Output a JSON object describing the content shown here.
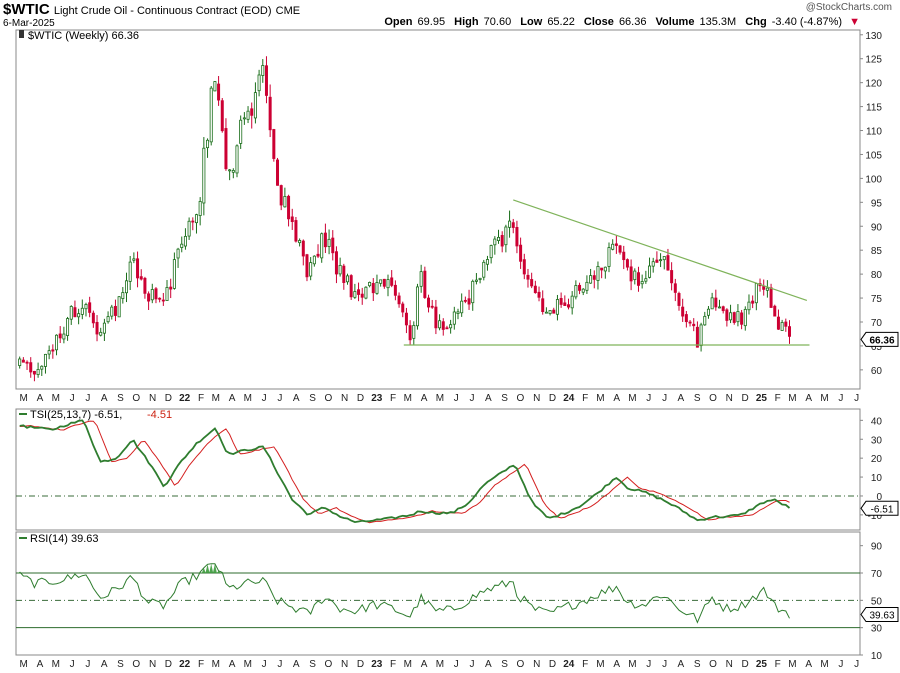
{
  "header": {
    "symbol": "$WTIC",
    "name": "Light Crude Oil - Continuous Contract (EOD)",
    "exchange": "CME",
    "date": "6-Mar-2025",
    "credit": "@StockCharts.com",
    "ohlc": {
      "open_label": "Open",
      "open": "69.95",
      "high_label": "High",
      "high": "70.60",
      "low_label": "Low",
      "low": "65.22",
      "close_label": "Close",
      "close": "66.36",
      "volume_label": "Volume",
      "volume": "135.3M",
      "chg_label": "Chg",
      "chg": "-3.40 (-4.87%)"
    }
  },
  "colors": {
    "up": "#1a6e1a",
    "down": "#cc0033",
    "tsi_line": "#2f7d2f",
    "tsi_signal": "#d42020",
    "rsi_line": "#2f7d2f",
    "rsi_fill": "#3c9a3c",
    "trend": "#7fb35a"
  },
  "chart_data": [
    {
      "type": "candlestick",
      "title": "$WTIC (Weekly) 66.36",
      "last_value": "66.36",
      "ylim": [
        56,
        131
      ],
      "y_ticks": [
        60,
        65,
        70,
        75,
        80,
        85,
        90,
        95,
        100,
        105,
        110,
        115,
        120,
        125,
        130
      ],
      "x_labels": [
        "M",
        "A",
        "M",
        "J",
        "J",
        "A",
        "S",
        "O",
        "N",
        "D",
        "22",
        "F",
        "M",
        "A",
        "M",
        "J",
        "J",
        "A",
        "S",
        "O",
        "N",
        "D",
        "23",
        "F",
        "M",
        "A",
        "M",
        "J",
        "J",
        "A",
        "S",
        "O",
        "N",
        "D",
        "24",
        "F",
        "M",
        "A",
        "M",
        "J",
        "J",
        "A",
        "S",
        "O",
        "N",
        "D",
        "25",
        "F",
        "M",
        "A",
        "M",
        "J",
        "J"
      ],
      "weekly_close_path": [
        [
          "2021-03-01",
          61
        ],
        [
          "2021-04-01",
          60
        ],
        [
          "2021-05-01",
          64
        ],
        [
          "2021-06-01",
          71
        ],
        [
          "2021-07-01",
          74
        ],
        [
          "2021-08-01",
          68
        ],
        [
          "2021-09-01",
          73
        ],
        [
          "2021-10-01",
          83
        ],
        [
          "2021-11-01",
          76
        ],
        [
          "2021-12-01",
          74
        ],
        [
          "2022-01-01",
          86
        ],
        [
          "2022-02-01",
          92
        ],
        [
          "2022-03-08",
          123.7
        ],
        [
          "2022-04-01",
          100
        ],
        [
          "2022-05-01",
          112
        ],
        [
          "2022-06-08",
          122
        ],
        [
          "2022-07-01",
          99
        ],
        [
          "2022-08-01",
          90
        ],
        [
          "2022-09-01",
          80
        ],
        [
          "2022-10-01",
          88
        ],
        [
          "2022-11-01",
          80
        ],
        [
          "2022-12-01",
          75
        ],
        [
          "2023-01-01",
          78
        ],
        [
          "2023-02-01",
          77
        ],
        [
          "2023-03-15",
          67
        ],
        [
          "2023-04-01",
          80
        ],
        [
          "2023-05-01",
          70
        ],
        [
          "2023-06-01",
          70
        ],
        [
          "2023-07-01",
          75
        ],
        [
          "2023-08-01",
          83
        ],
        [
          "2023-09-28",
          91
        ],
        [
          "2023-10-01",
          85
        ],
        [
          "2023-11-01",
          77
        ],
        [
          "2023-12-01",
          72
        ],
        [
          "2024-01-01",
          74
        ],
        [
          "2024-02-01",
          77
        ],
        [
          "2024-03-01",
          81
        ],
        [
          "2024-04-08",
          86
        ],
        [
          "2024-05-01",
          79
        ],
        [
          "2024-06-01",
          79
        ],
        [
          "2024-07-05",
          83
        ],
        [
          "2024-08-01",
          75
        ],
        [
          "2024-09-10",
          66
        ],
        [
          "2024-10-07",
          76
        ],
        [
          "2024-11-01",
          70
        ],
        [
          "2024-12-01",
          71
        ],
        [
          "2025-01-15",
          79
        ],
        [
          "2025-02-01",
          71
        ],
        [
          "2025-03-06",
          66.36
        ]
      ],
      "resistance_trendline": [
        [
          "2023-09-25",
          95.5
        ],
        [
          "2025-04-05",
          74.5
        ]
      ],
      "support_line": {
        "from": "2023-03-01",
        "to": "2025-04-10",
        "y": 65.2
      }
    },
    {
      "type": "line",
      "title": "TSI(25,13,7)",
      "series": [
        {
          "name": "TSI(25,13,7)",
          "value": "-6.51"
        },
        {
          "name": "signal",
          "value": "-4.51"
        }
      ],
      "ylim": [
        -18,
        46
      ],
      "y_ticks": [
        -10,
        0,
        10,
        20,
        30,
        40
      ],
      "reference_line": 0,
      "tsi_path": [
        [
          "2021-03-01",
          37
        ],
        [
          "2021-04-01",
          36
        ],
        [
          "2021-05-01",
          35
        ],
        [
          "2021-06-01",
          38
        ],
        [
          "2021-07-01",
          40
        ],
        [
          "2021-08-01",
          18
        ],
        [
          "2021-09-01",
          20
        ],
        [
          "2021-10-01",
          30
        ],
        [
          "2021-11-01",
          18
        ],
        [
          "2021-12-01",
          5
        ],
        [
          "2022-01-01",
          18
        ],
        [
          "2022-02-01",
          28
        ],
        [
          "2022-03-08",
          36
        ],
        [
          "2022-04-01",
          22
        ],
        [
          "2022-05-01",
          24
        ],
        [
          "2022-06-08",
          26
        ],
        [
          "2022-07-01",
          14
        ],
        [
          "2022-08-01",
          -2
        ],
        [
          "2022-09-01",
          -10
        ],
        [
          "2022-10-01",
          -6
        ],
        [
          "2022-11-01",
          -11
        ],
        [
          "2022-12-01",
          -14
        ],
        [
          "2023-01-01",
          -13
        ],
        [
          "2023-02-01",
          -12
        ],
        [
          "2023-03-15",
          -10
        ],
        [
          "2023-04-01",
          -8
        ],
        [
          "2023-05-01",
          -9
        ],
        [
          "2023-06-01",
          -9
        ],
        [
          "2023-07-01",
          -4
        ],
        [
          "2023-08-01",
          6
        ],
        [
          "2023-09-28",
          17
        ],
        [
          "2023-10-01",
          15
        ],
        [
          "2023-11-01",
          -4
        ],
        [
          "2023-12-01",
          -12
        ],
        [
          "2024-01-01",
          -9
        ],
        [
          "2024-02-01",
          -5
        ],
        [
          "2024-03-01",
          1
        ],
        [
          "2024-04-08",
          10
        ],
        [
          "2024-05-01",
          4
        ],
        [
          "2024-06-01",
          2
        ],
        [
          "2024-07-05",
          -2
        ],
        [
          "2024-08-01",
          -6
        ],
        [
          "2024-09-10",
          -13
        ],
        [
          "2024-10-07",
          -11
        ],
        [
          "2024-11-01",
          -11
        ],
        [
          "2024-12-01",
          -10
        ],
        [
          "2025-01-15",
          -3
        ],
        [
          "2025-02-01",
          -2
        ],
        [
          "2025-03-06",
          -6.51
        ]
      ]
    },
    {
      "type": "line",
      "title": "RSI(14)",
      "series": [
        {
          "name": "RSI(14)",
          "value": "39.63"
        }
      ],
      "ylim": [
        10,
        100
      ],
      "y_ticks": [
        10,
        30,
        50,
        70,
        90
      ],
      "reference_lines": [
        30,
        50,
        70
      ],
      "rsi_path": [
        [
          "2021-03-01",
          68
        ],
        [
          "2021-04-01",
          62
        ],
        [
          "2021-05-01",
          64
        ],
        [
          "2021-06-01",
          66
        ],
        [
          "2021-07-01",
          70
        ],
        [
          "2021-08-01",
          52
        ],
        [
          "2021-09-01",
          58
        ],
        [
          "2021-10-01",
          67
        ],
        [
          "2021-11-01",
          48
        ],
        [
          "2021-12-01",
          46
        ],
        [
          "2022-01-01",
          62
        ],
        [
          "2022-02-01",
          68
        ],
        [
          "2022-03-08",
          78
        ],
        [
          "2022-04-01",
          58
        ],
        [
          "2022-05-01",
          62
        ],
        [
          "2022-06-08",
          64
        ],
        [
          "2022-07-01",
          50
        ],
        [
          "2022-08-01",
          45
        ],
        [
          "2022-09-01",
          40
        ],
        [
          "2022-10-01",
          53
        ],
        [
          "2022-11-01",
          44
        ],
        [
          "2022-12-01",
          42
        ],
        [
          "2023-01-01",
          47
        ],
        [
          "2023-02-01",
          45
        ],
        [
          "2023-03-15",
          38
        ],
        [
          "2023-04-01",
          52
        ],
        [
          "2023-05-01",
          42
        ],
        [
          "2023-06-01",
          43
        ],
        [
          "2023-07-01",
          50
        ],
        [
          "2023-08-01",
          57
        ],
        [
          "2023-09-28",
          64
        ],
        [
          "2023-10-01",
          55
        ],
        [
          "2023-11-01",
          44
        ],
        [
          "2023-12-01",
          40
        ],
        [
          "2024-01-01",
          45
        ],
        [
          "2024-02-01",
          49
        ],
        [
          "2024-03-01",
          54
        ],
        [
          "2024-04-08",
          60
        ],
        [
          "2024-05-01",
          48
        ],
        [
          "2024-06-01",
          47
        ],
        [
          "2024-07-05",
          55
        ],
        [
          "2024-08-01",
          45
        ],
        [
          "2024-09-10",
          36
        ],
        [
          "2024-10-07",
          52
        ],
        [
          "2024-11-01",
          44
        ],
        [
          "2024-12-01",
          46
        ],
        [
          "2025-01-15",
          58
        ],
        [
          "2025-02-01",
          46
        ],
        [
          "2025-03-06",
          39.63
        ]
      ]
    }
  ]
}
